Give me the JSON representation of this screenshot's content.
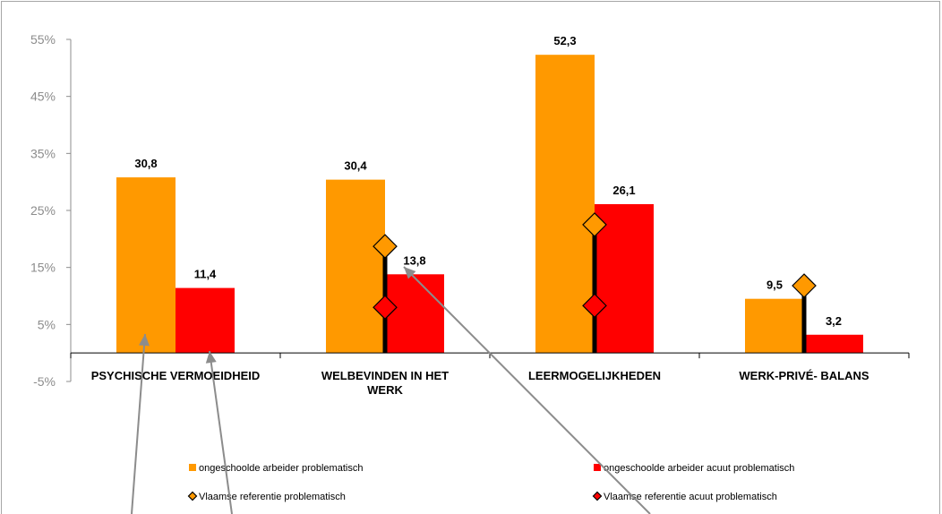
{
  "chart_data": {
    "type": "bar",
    "categories": [
      [
        "PSYCHISCHE VERMOEIDHEID"
      ],
      [
        "WELBEVINDEN IN HET",
        "WERK"
      ],
      [
        "LEERMOGELIJKHEDEN"
      ],
      [
        "WERK-PRIVÉ- BALANS"
      ]
    ],
    "series": [
      {
        "name": "ongeschoolde arbeider problematisch",
        "color": "#ff9900",
        "values": [
          30.8,
          30.4,
          52.3,
          9.5
        ]
      },
      {
        "name": "ongeschoolde arbeider acuut problematisch",
        "color": "#ff0000",
        "values": [
          11.4,
          13.8,
          26.1,
          3.2
        ]
      }
    ],
    "data_labels": [
      [
        "30,8",
        "30,4",
        "52,3",
        "9,5"
      ],
      [
        "11,4",
        "13,8",
        "26,1",
        "3,2"
      ]
    ],
    "reference_series": [
      {
        "name": "Vlaamse referentie problematisch",
        "color": "#ff9900",
        "values": [
          null,
          18.7,
          22.5,
          11.8
        ]
      },
      {
        "name": "Vlaamse referentie acuut problematisch",
        "color": "#ff0000",
        "values": [
          null,
          8.0,
          8.3,
          null
        ]
      }
    ],
    "y_ticks": [
      -5,
      5,
      15,
      25,
      35,
      45,
      55
    ],
    "y_tick_labels": [
      "-5%",
      "5%",
      "15%",
      "25%",
      "35%",
      "45%",
      "55%"
    ],
    "ylim": [
      -5,
      55
    ],
    "legend_position": "bottom"
  }
}
